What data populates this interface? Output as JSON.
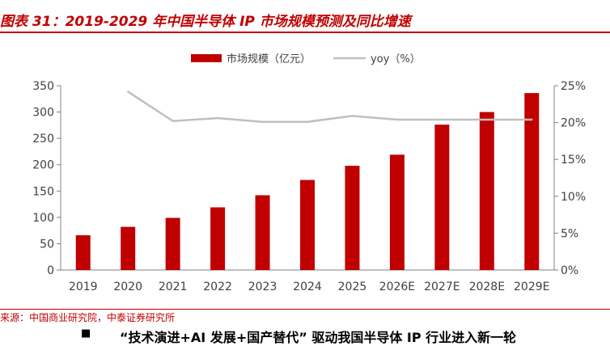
{
  "figure_title": "图表 31：2019-2029 年中国半导体 IP 市场规模预测及同比增速",
  "source": "来源：中国商业研究院，中泰证券研究所",
  "body_text": {
    "bullet": "■",
    "text": "“技术演进+AI 发展+国产替代” 驱动我国半导体 IP 行业进入新一轮"
  },
  "colors": {
    "accent": "#c00000",
    "bar": "#c00000",
    "line": "#bfbfbf",
    "axis": "#808080"
  },
  "chart_data": {
    "type": "bar",
    "categories": [
      "2019",
      "2020",
      "2021",
      "2022",
      "2023",
      "2024",
      "2025",
      "2026E",
      "2027E",
      "2028E",
      "2029E"
    ],
    "series": [
      {
        "name": "市场规模（亿元）",
        "type": "bar",
        "axis": "left",
        "values": [
          66,
          82,
          99,
          119,
          142,
          171,
          198,
          219,
          276,
          300,
          336
        ]
      },
      {
        "name": "yoy（%）",
        "type": "line",
        "axis": "right",
        "values": [
          null,
          24.2,
          20.2,
          20.6,
          20.1,
          20.1,
          20.9,
          20.4,
          20.4,
          20.4,
          20.4
        ]
      }
    ],
    "y_left": {
      "min": 0,
      "max": 350,
      "ticks": [
        "0",
        "50",
        "100",
        "150",
        "200",
        "250",
        "300",
        "350"
      ]
    },
    "y_right": {
      "min": 0,
      "max": 25,
      "ticks": [
        "0%",
        "5%",
        "10%",
        "15%",
        "20%",
        "25%"
      ]
    },
    "legend_position": "top-center",
    "grid": false
  }
}
